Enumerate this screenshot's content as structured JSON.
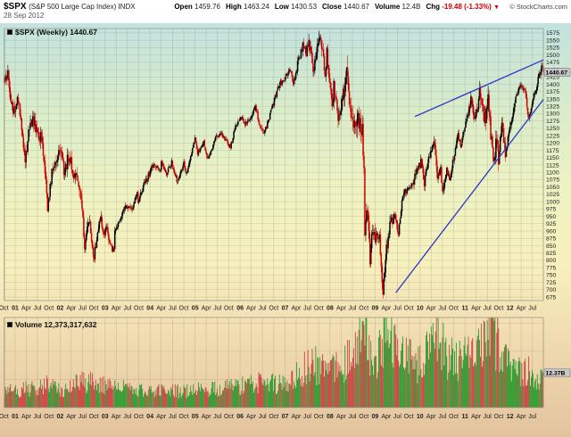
{
  "header": {
    "symbol": "$SPX",
    "name": "(S&P 500 Large Cap Index) INDX",
    "date": "28 Sep 2012",
    "fields": [
      {
        "label": "Open",
        "value": "1459.76"
      },
      {
        "label": "High",
        "value": "1463.24"
      },
      {
        "label": "Low",
        "value": "1430.53"
      },
      {
        "label": "Close",
        "value": "1440.67"
      },
      {
        "label": "Volume",
        "value": "12.4B"
      },
      {
        "label": "Chg",
        "value": "-19.48 (-1.33%)"
      }
    ],
    "copyright": "© StockCharts.com"
  },
  "legend": {
    "main": "$SPX (Weekly) 1440.67",
    "volume": "Volume 12,373,317,632"
  },
  "axis": {
    "price_box": "1440.67",
    "volume_box": "12.37B"
  },
  "colors": {
    "bg_stops": [
      [
        "0%",
        "#c2e2df"
      ],
      [
        "20%",
        "#d8eccb"
      ],
      [
        "40%",
        "#eef2c2"
      ],
      [
        "58%",
        "#f7f0bd"
      ],
      [
        "75%",
        "#f1ddb2"
      ],
      [
        "100%",
        "#e3c39e"
      ]
    ],
    "grid": "rgba(130,125,110,0.35)",
    "border": "#999988",
    "axis_text": "#222222",
    "candle_up": "#000000",
    "candle_down": "#cc0000",
    "vol_up": "#2e9c30",
    "vol_down": "#cc4444",
    "trendline": "#2b35c8",
    "last_box_bg": "#c8c8c8",
    "last_box_border": "#777777",
    "chg_negative": "#cc0000"
  },
  "chart_data": {
    "type": "candlestick",
    "title": "$SPX (S&P 500 Large Cap Index) INDX - Weekly with volume pane",
    "symbol": "$SPX",
    "period": "Weekly",
    "as_of": "28 Sep 2012",
    "date_range": [
      "2000-10-06",
      "2012-09-28"
    ],
    "y_view": [
      663,
      1590
    ],
    "y_ticks": [
      675,
      1575,
      25
    ],
    "x_tick_labels": [
      "Oct",
      "01",
      "Apr",
      "Jul",
      "Oct",
      "02",
      "Apr",
      "Jul",
      "Oct",
      "03",
      "Apr",
      "Jul",
      "Oct",
      "04",
      "Apr",
      "Jul",
      "Oct",
      "05",
      "Apr",
      "Jul",
      "Oct",
      "06",
      "Apr",
      "Jul",
      "Oct",
      "07",
      "Apr",
      "Jul",
      "Oct",
      "08",
      "Apr",
      "Jul",
      "Oct",
      "09",
      "Apr",
      "Jul",
      "Oct",
      "10",
      "Apr",
      "Jul",
      "Oct",
      "11",
      "Apr",
      "Jul",
      "Oct",
      "12",
      "Apr",
      "Jul"
    ],
    "last": {
      "open": 1459.76,
      "high": 1463.24,
      "low": 1430.53,
      "close": 1440.67,
      "volume_b": 12.37
    },
    "close_anchors": [
      [
        "2000-10-06",
        1409
      ],
      [
        "2000-11-03",
        1427
      ],
      [
        "2000-11-24",
        1342
      ],
      [
        "2000-12-22",
        1306
      ],
      [
        "2001-01-26",
        1354
      ],
      [
        "2001-02-23",
        1246
      ],
      [
        "2001-03-23",
        1140
      ],
      [
        "2001-04-27",
        1253
      ],
      [
        "2001-05-25",
        1278
      ],
      [
        "2001-06-29",
        1224
      ],
      [
        "2001-08-03",
        1214
      ],
      [
        "2001-09-07",
        1086
      ],
      [
        "2001-09-21",
        966
      ],
      [
        "2001-10-26",
        1104
      ],
      [
        "2001-12-07",
        1158
      ],
      [
        "2002-01-04",
        1172
      ],
      [
        "2002-02-08",
        1096
      ],
      [
        "2002-03-15",
        1166
      ],
      [
        "2002-04-26",
        1076
      ],
      [
        "2002-05-17",
        1106
      ],
      [
        "2002-06-28",
        989
      ],
      [
        "2002-07-19",
        848
      ],
      [
        "2002-08-23",
        941
      ],
      [
        "2002-09-27",
        827
      ],
      [
        "2002-10-04",
        800
      ],
      [
        "2002-10-11",
        835
      ],
      [
        "2002-11-01",
        901
      ],
      [
        "2002-11-29",
        936
      ],
      [
        "2002-12-27",
        875
      ],
      [
        "2003-01-10",
        927
      ],
      [
        "2003-01-31",
        856
      ],
      [
        "2003-03-14",
        833
      ],
      [
        "2003-03-21",
        895
      ],
      [
        "2003-05-02",
        930
      ],
      [
        "2003-06-13",
        988
      ],
      [
        "2003-08-08",
        977
      ],
      [
        "2003-09-19",
        1036
      ],
      [
        "2003-09-26",
        996
      ],
      [
        "2003-11-07",
        1053
      ],
      [
        "2003-12-26",
        1095
      ],
      [
        "2004-01-30",
        1131
      ],
      [
        "2004-03-26",
        1108
      ],
      [
        "2004-04-02",
        1141
      ],
      [
        "2004-05-14",
        1095
      ],
      [
        "2004-06-25",
        1134
      ],
      [
        "2004-08-13",
        1064
      ],
      [
        "2004-10-01",
        1131
      ],
      [
        "2004-10-22",
        1095
      ],
      [
        "2004-12-31",
        1212
      ],
      [
        "2005-01-21",
        1167
      ],
      [
        "2005-03-11",
        1200
      ],
      [
        "2005-04-15",
        1142
      ],
      [
        "2005-06-17",
        1216
      ],
      [
        "2005-07-29",
        1234
      ],
      [
        "2005-10-14",
        1186
      ],
      [
        "2005-12-02",
        1265
      ],
      [
        "2006-01-06",
        1285
      ],
      [
        "2006-02-10",
        1266
      ],
      [
        "2006-04-07",
        1295
      ],
      [
        "2006-05-05",
        1325
      ],
      [
        "2006-06-16",
        1251
      ],
      [
        "2006-07-21",
        1240
      ],
      [
        "2006-09-29",
        1336
      ],
      [
        "2006-11-17",
        1401
      ],
      [
        "2006-12-29",
        1418
      ],
      [
        "2007-02-16",
        1455
      ],
      [
        "2007-03-09",
        1402
      ],
      [
        "2007-04-27",
        1494
      ],
      [
        "2007-06-01",
        1536
      ],
      [
        "2007-06-22",
        1502
      ],
      [
        "2007-07-13",
        1552
      ],
      [
        "2007-08-17",
        1445
      ],
      [
        "2007-10-12",
        1562
      ],
      [
        "2007-11-23",
        1440
      ],
      [
        "2007-12-07",
        1504
      ],
      [
        "2008-01-18",
        1325
      ],
      [
        "2008-02-01",
        1395
      ],
      [
        "2008-03-07",
        1293
      ],
      [
        "2008-05-16",
        1425
      ],
      [
        "2008-06-27",
        1278
      ],
      [
        "2008-07-11",
        1239
      ],
      [
        "2008-08-08",
        1296
      ],
      [
        "2008-09-19",
        1255
      ],
      [
        "2008-10-03",
        1099
      ],
      [
        "2008-10-10",
        899
      ],
      [
        "2008-10-31",
        969
      ],
      [
        "2008-11-21",
        800
      ],
      [
        "2008-12-05",
        876
      ],
      [
        "2008-12-26",
        873
      ],
      [
        "2009-01-09",
        890
      ],
      [
        "2009-02-06",
        869
      ],
      [
        "2009-03-06",
        683
      ],
      [
        "2009-04-03",
        842
      ],
      [
        "2009-05-08",
        929
      ],
      [
        "2009-06-12",
        946
      ],
      [
        "2009-07-10",
        879
      ],
      [
        "2009-08-07",
        1010
      ],
      [
        "2009-09-25",
        1044
      ],
      [
        "2009-11-06",
        1069
      ],
      [
        "2009-12-25",
        1126
      ],
      [
        "2010-01-15",
        1136
      ],
      [
        "2010-02-05",
        1066
      ],
      [
        "2010-03-26",
        1166
      ],
      [
        "2010-04-23",
        1217
      ],
      [
        "2010-05-21",
        1088
      ],
      [
        "2010-06-18",
        1118
      ],
      [
        "2010-07-02",
        1023
      ],
      [
        "2010-08-06",
        1122
      ],
      [
        "2010-08-27",
        1065
      ],
      [
        "2010-10-08",
        1165
      ],
      [
        "2010-11-05",
        1226
      ],
      [
        "2010-11-26",
        1189
      ],
      [
        "2010-12-31",
        1258
      ],
      [
        "2011-02-18",
        1343
      ],
      [
        "2011-03-18",
        1279
      ],
      [
        "2011-04-29",
        1364
      ],
      [
        "2011-06-17",
        1272
      ],
      [
        "2011-07-08",
        1344
      ],
      [
        "2011-08-05",
        1199
      ],
      [
        "2011-08-19",
        1124
      ],
      [
        "2011-09-16",
        1216
      ],
      [
        "2011-09-30",
        1131
      ],
      [
        "2011-10-07",
        1155
      ],
      [
        "2011-10-28",
        1285
      ],
      [
        "2011-11-25",
        1159
      ],
      [
        "2011-12-30",
        1258
      ],
      [
        "2012-01-27",
        1316
      ],
      [
        "2012-03-02",
        1370
      ],
      [
        "2012-04-06",
        1398
      ],
      [
        "2012-05-04",
        1369
      ],
      [
        "2012-06-01",
        1278
      ],
      [
        "2012-07-06",
        1355
      ],
      [
        "2012-08-03",
        1391
      ],
      [
        "2012-09-14",
        1466
      ],
      [
        "2012-09-21",
        1460
      ],
      [
        "2012-09-28",
        1441
      ]
    ],
    "volume_anchors_b": [
      [
        "2000-10-06",
        5.5
      ],
      [
        "2001-03-16",
        6.5
      ],
      [
        "2001-09-21",
        8.5
      ],
      [
        "2002-01-04",
        6.0
      ],
      [
        "2002-07-19",
        9.5
      ],
      [
        "2002-10-11",
        8.2
      ],
      [
        "2003-03-14",
        7.2
      ],
      [
        "2003-12-26",
        5.8
      ],
      [
        "2004-06-25",
        5.6
      ],
      [
        "2005-06-17",
        6.4
      ],
      [
        "2006-06-16",
        8.6
      ],
      [
        "2006-12-29",
        8.2
      ],
      [
        "2007-02-28",
        10.5
      ],
      [
        "2007-08-10",
        15.5
      ],
      [
        "2007-12-28",
        11.0
      ],
      [
        "2008-03-07",
        15.5
      ],
      [
        "2008-07-18",
        17.0
      ],
      [
        "2008-10-10",
        28.0
      ],
      [
        "2008-12-26",
        14.0
      ],
      [
        "2009-03-06",
        25.0
      ],
      [
        "2009-06-12",
        20.0
      ],
      [
        "2009-12-25",
        15.0
      ],
      [
        "2010-05-07",
        26.0
      ],
      [
        "2010-08-27",
        16.5
      ],
      [
        "2011-03-18",
        17.0
      ],
      [
        "2011-08-05",
        27.0
      ],
      [
        "2011-12-30",
        13.0
      ],
      [
        "2012-04-06",
        13.5
      ],
      [
        "2012-08-17",
        10.5
      ],
      [
        "2012-09-28",
        12.37
      ]
    ],
    "volatility_anchors": [
      [
        "2000-10-06",
        0.03
      ],
      [
        "2001-09-21",
        0.042
      ],
      [
        "2002-07-19",
        0.046
      ],
      [
        "2003-06-13",
        0.022
      ],
      [
        "2004-06-25",
        0.016
      ],
      [
        "2005-06-17",
        0.013
      ],
      [
        "2006-06-16",
        0.016
      ],
      [
        "2007-02-16",
        0.014
      ],
      [
        "2007-08-17",
        0.028
      ],
      [
        "2008-01-18",
        0.032
      ],
      [
        "2008-10-10",
        0.075
      ],
      [
        "2009-03-06",
        0.055
      ],
      [
        "2009-09-25",
        0.028
      ],
      [
        "2010-05-07",
        0.035
      ],
      [
        "2010-12-31",
        0.018
      ],
      [
        "2011-08-05",
        0.055
      ],
      [
        "2012-03-02",
        0.018
      ],
      [
        "2012-09-28",
        0.016
      ]
    ],
    "volume_axis_max_b": 32,
    "volume_grid_b": [
      10,
      20,
      30
    ],
    "trendlines": [
      {
        "name": "rising-support-line",
        "from": [
          "2009-06-19",
          690
        ],
        "to": [
          "2012-09-28",
          1348
        ]
      },
      {
        "name": "upper-resistance-line",
        "from": [
          "2009-11-20",
          1290
        ],
        "to": [
          "2012-09-28",
          1483
        ]
      }
    ],
    "render_seed": 20120928
  }
}
